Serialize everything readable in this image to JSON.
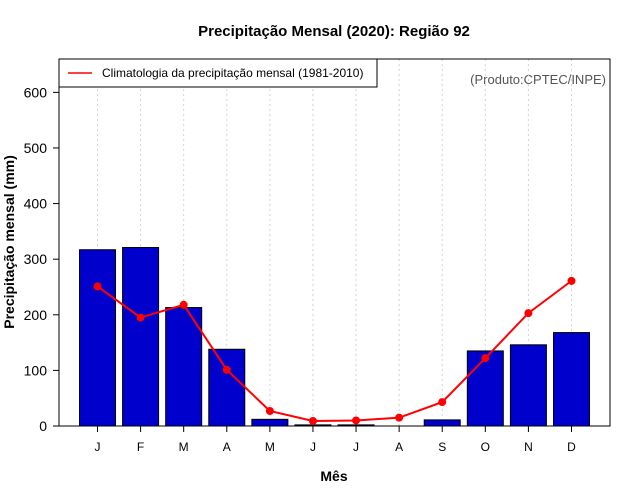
{
  "chart_data": {
    "type": "bar",
    "title": "Precipitação Mensal (2020): Região 92",
    "xlabel": "Mês",
    "ylabel": "Precipitação mensal (mm)",
    "credit": "(Produto:CPTEC/INPE)",
    "categories": [
      "J",
      "F",
      "M",
      "A",
      "M",
      "J",
      "J",
      "A",
      "S",
      "O",
      "N",
      "D"
    ],
    "ylim": [
      0,
      660
    ],
    "yticks": [
      0,
      100,
      200,
      300,
      400,
      500,
      600
    ],
    "grid": "vertical dotted",
    "legend_position": "top-left",
    "series": [
      {
        "name": "Precipitação mensal 2020",
        "kind": "bar",
        "color": "#0000CD",
        "values": [
          317,
          321,
          213,
          138,
          12,
          2,
          2,
          0,
          11,
          135,
          146,
          168
        ]
      },
      {
        "name": "Climatologia da precipitação mensal (1981-2010)",
        "kind": "line",
        "color": "#FF0000",
        "values": [
          251,
          195,
          218,
          101,
          27,
          9,
          10,
          15,
          43,
          122,
          203,
          261
        ]
      }
    ]
  }
}
